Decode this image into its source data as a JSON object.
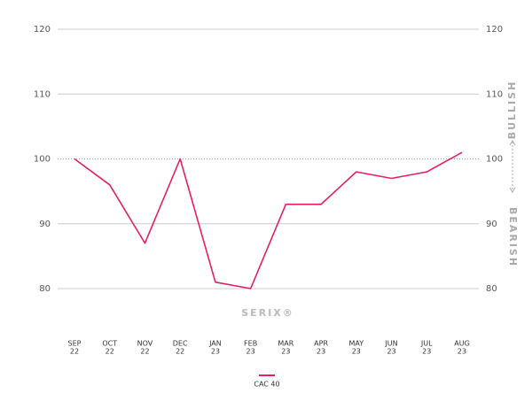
{
  "chart_data": {
    "type": "line",
    "categories": [
      [
        "SEP",
        "22"
      ],
      [
        "OCT",
        "22"
      ],
      [
        "NOV",
        "22"
      ],
      [
        "DEC",
        "22"
      ],
      [
        "JAN",
        "23"
      ],
      [
        "FEB",
        "23"
      ],
      [
        "MAR",
        "23"
      ],
      [
        "APR",
        "23"
      ],
      [
        "MAY",
        "23"
      ],
      [
        "JUN",
        "23"
      ],
      [
        "JUL",
        "23"
      ],
      [
        "AUG",
        "23"
      ]
    ],
    "series": [
      {
        "name": "CAC 40",
        "color": "#e91e63",
        "values": [
          100,
          96,
          87,
          100,
          81,
          80,
          93,
          93,
          98,
          97,
          98,
          101
        ]
      }
    ],
    "ylim": [
      80,
      120
    ],
    "yticks": [
      80,
      90,
      100,
      110,
      120
    ],
    "y2lim": [
      80,
      120
    ],
    "y2ticks": [
      80,
      90,
      100,
      110,
      120
    ],
    "reference_line": 100,
    "grid": true,
    "annotations": {
      "upper": "BULLISH",
      "lower": "BEARISH",
      "watermark": "SERIX®"
    },
    "legend": "bottom"
  }
}
